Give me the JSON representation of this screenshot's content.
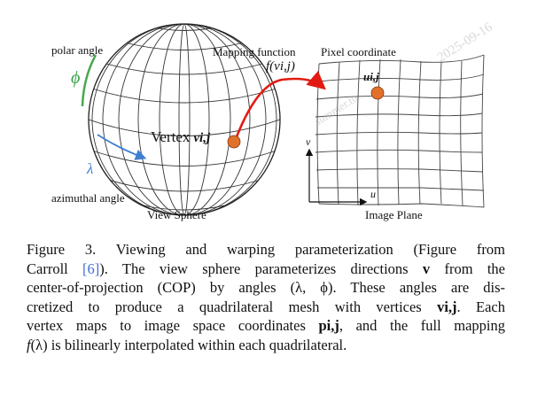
{
  "figure": {
    "polar_angle_label": "polar angle",
    "phi_symbol": "ϕ",
    "lambda_symbol": "λ",
    "azimuthal_angle_label": "azimuthal angle",
    "view_sphere_label": "View Sphere",
    "vertex_label": "Vertex",
    "vertex_symbol": "vi,j",
    "mapping_function_label": "Mapping function",
    "mapping_function_symbol": "f(vi,j)",
    "pixel_coordinate_label": "Pixel coordinate",
    "pixel_symbol": "ui,j",
    "v_axis_label": "v",
    "u_axis_label": "u",
    "image_plane_label": "Image Plane",
    "watermark_date": "2025-09-16",
    "watermark_name": "summer.tu"
  },
  "caption": {
    "line1": "Figure 3.  Viewing and warping parameterization (Figure from",
    "line2_a": "Carroll ",
    "line2_ref": "[6]",
    "line2_b": ").  The view sphere parameterizes directions ",
    "line2_v": "v",
    "line2_c": " from the",
    "line3": "center-of-projection (COP) by angles (λ, ϕ). These angles are dis-",
    "line4_a": "cretized to produce a quadrilateral mesh with vertices ",
    "line4_v": "vi,j",
    "line4_b": ". Each",
    "line5_a": "vertex maps to image space coordinates ",
    "line5_p": "pi,j",
    "line5_b": ", and the full mapping",
    "line6_a": "f",
    "line6_b": "(λ) is bilinearly interpolated within each quadrilateral."
  },
  "colors": {
    "vertex_dot": "#e0702a",
    "mapping_arrow": "#e21b12",
    "phi_arrow": "#4aa84f",
    "lambda_arrow": "#3f7fd1"
  }
}
